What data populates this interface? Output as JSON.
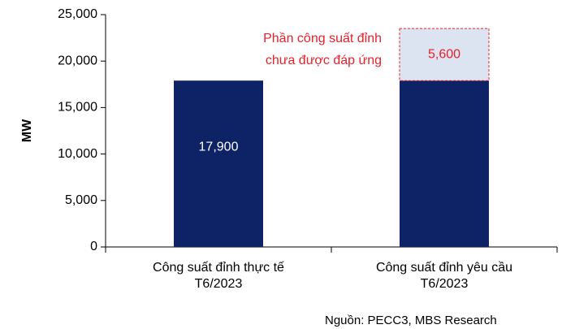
{
  "chart_data": {
    "type": "stacked_bar",
    "y_label": "MW",
    "categories": [
      "Công suất đỉnh thực tế\nT6/2023",
      "Công suất đỉnh yêu cầu\nT6/2023"
    ],
    "series": [
      {
        "color": "#0d2366",
        "values": [
          17900,
          17900
        ],
        "value_labels": [
          "17,900",
          null
        ]
      },
      {
        "color": "#dce4f2",
        "values": [
          null,
          5600
        ],
        "value_labels": [
          null,
          "5,600"
        ]
      }
    ],
    "ylim": [
      0,
      25000
    ],
    "yticks": [
      0,
      {
        "value": 5000,
        "label": "5,000"
      },
      {
        "value": 10000,
        "label": "10,000"
      },
      {
        "value": 15000,
        "label": "15,000"
      },
      {
        "value": 20000,
        "label": "20,000"
      },
      {
        "value": 25000,
        "label": "25,000"
      }
    ],
    "annotation": "Phần công suất đỉnh\nchưa được đáp ứng",
    "source": "Nguồn: PECC3, MBS Research"
  }
}
